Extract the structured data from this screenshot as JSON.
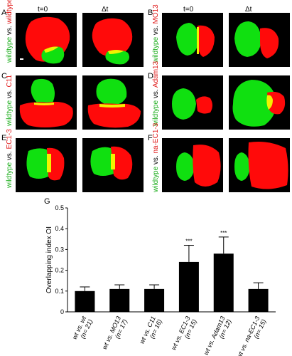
{
  "headers": {
    "t0": "t=0",
    "dt": "Δt"
  },
  "panels": [
    {
      "letter": "A",
      "left": "wildtype",
      "vs": " vs. ",
      "right": "wildtype"
    },
    {
      "letter": "B",
      "left": "wildtype",
      "vs": " vs. ",
      "right": "MO13"
    },
    {
      "letter": "C",
      "left": "wildtype",
      "vs": " vs. ",
      "right": "C11"
    },
    {
      "letter": "D",
      "left": "wildtype",
      "vs": " vs. ",
      "right": "Adam13"
    },
    {
      "letter": "E",
      "left": "wildtype",
      "vs": " vs. ",
      "right": "EC1-3"
    },
    {
      "letter": "F",
      "left": "wildtype",
      "vs": " vs. ",
      "right": "na-EC1-3"
    }
  ],
  "colors": {
    "green": "#10e010",
    "red": "#ff0a0a",
    "yellow": "#f2f200",
    "bar": "#000000"
  },
  "chart_label": "G",
  "chart_data": {
    "type": "bar",
    "ylabel": "Overlapping index OI",
    "ylim": [
      0,
      0.5
    ],
    "yticks": [
      "0",
      "0.1",
      "0.2",
      "0.3",
      "0.4",
      "0.5"
    ],
    "categories": [
      {
        "line1": "wt vs. wt",
        "line2": "(n= 21)"
      },
      {
        "line1": "wt vs. MO13",
        "line2": "(n= 17)"
      },
      {
        "line1": "wt vs. C11",
        "line2": "(n= 16)"
      },
      {
        "line1": "wt vs. EC1-3",
        "line2": "(n= 15)"
      },
      {
        "line1": "wt vs. Adam13",
        "line2": "(n= 12)"
      },
      {
        "line1": "wt vs. na-EC1-3",
        "line2": "(n= 15)"
      }
    ],
    "values": [
      0.1,
      0.11,
      0.11,
      0.24,
      0.28,
      0.11
    ],
    "errors": [
      0.02,
      0.02,
      0.02,
      0.08,
      0.08,
      0.03
    ],
    "significance": [
      "",
      "",
      "",
      "***",
      "***",
      ""
    ]
  }
}
